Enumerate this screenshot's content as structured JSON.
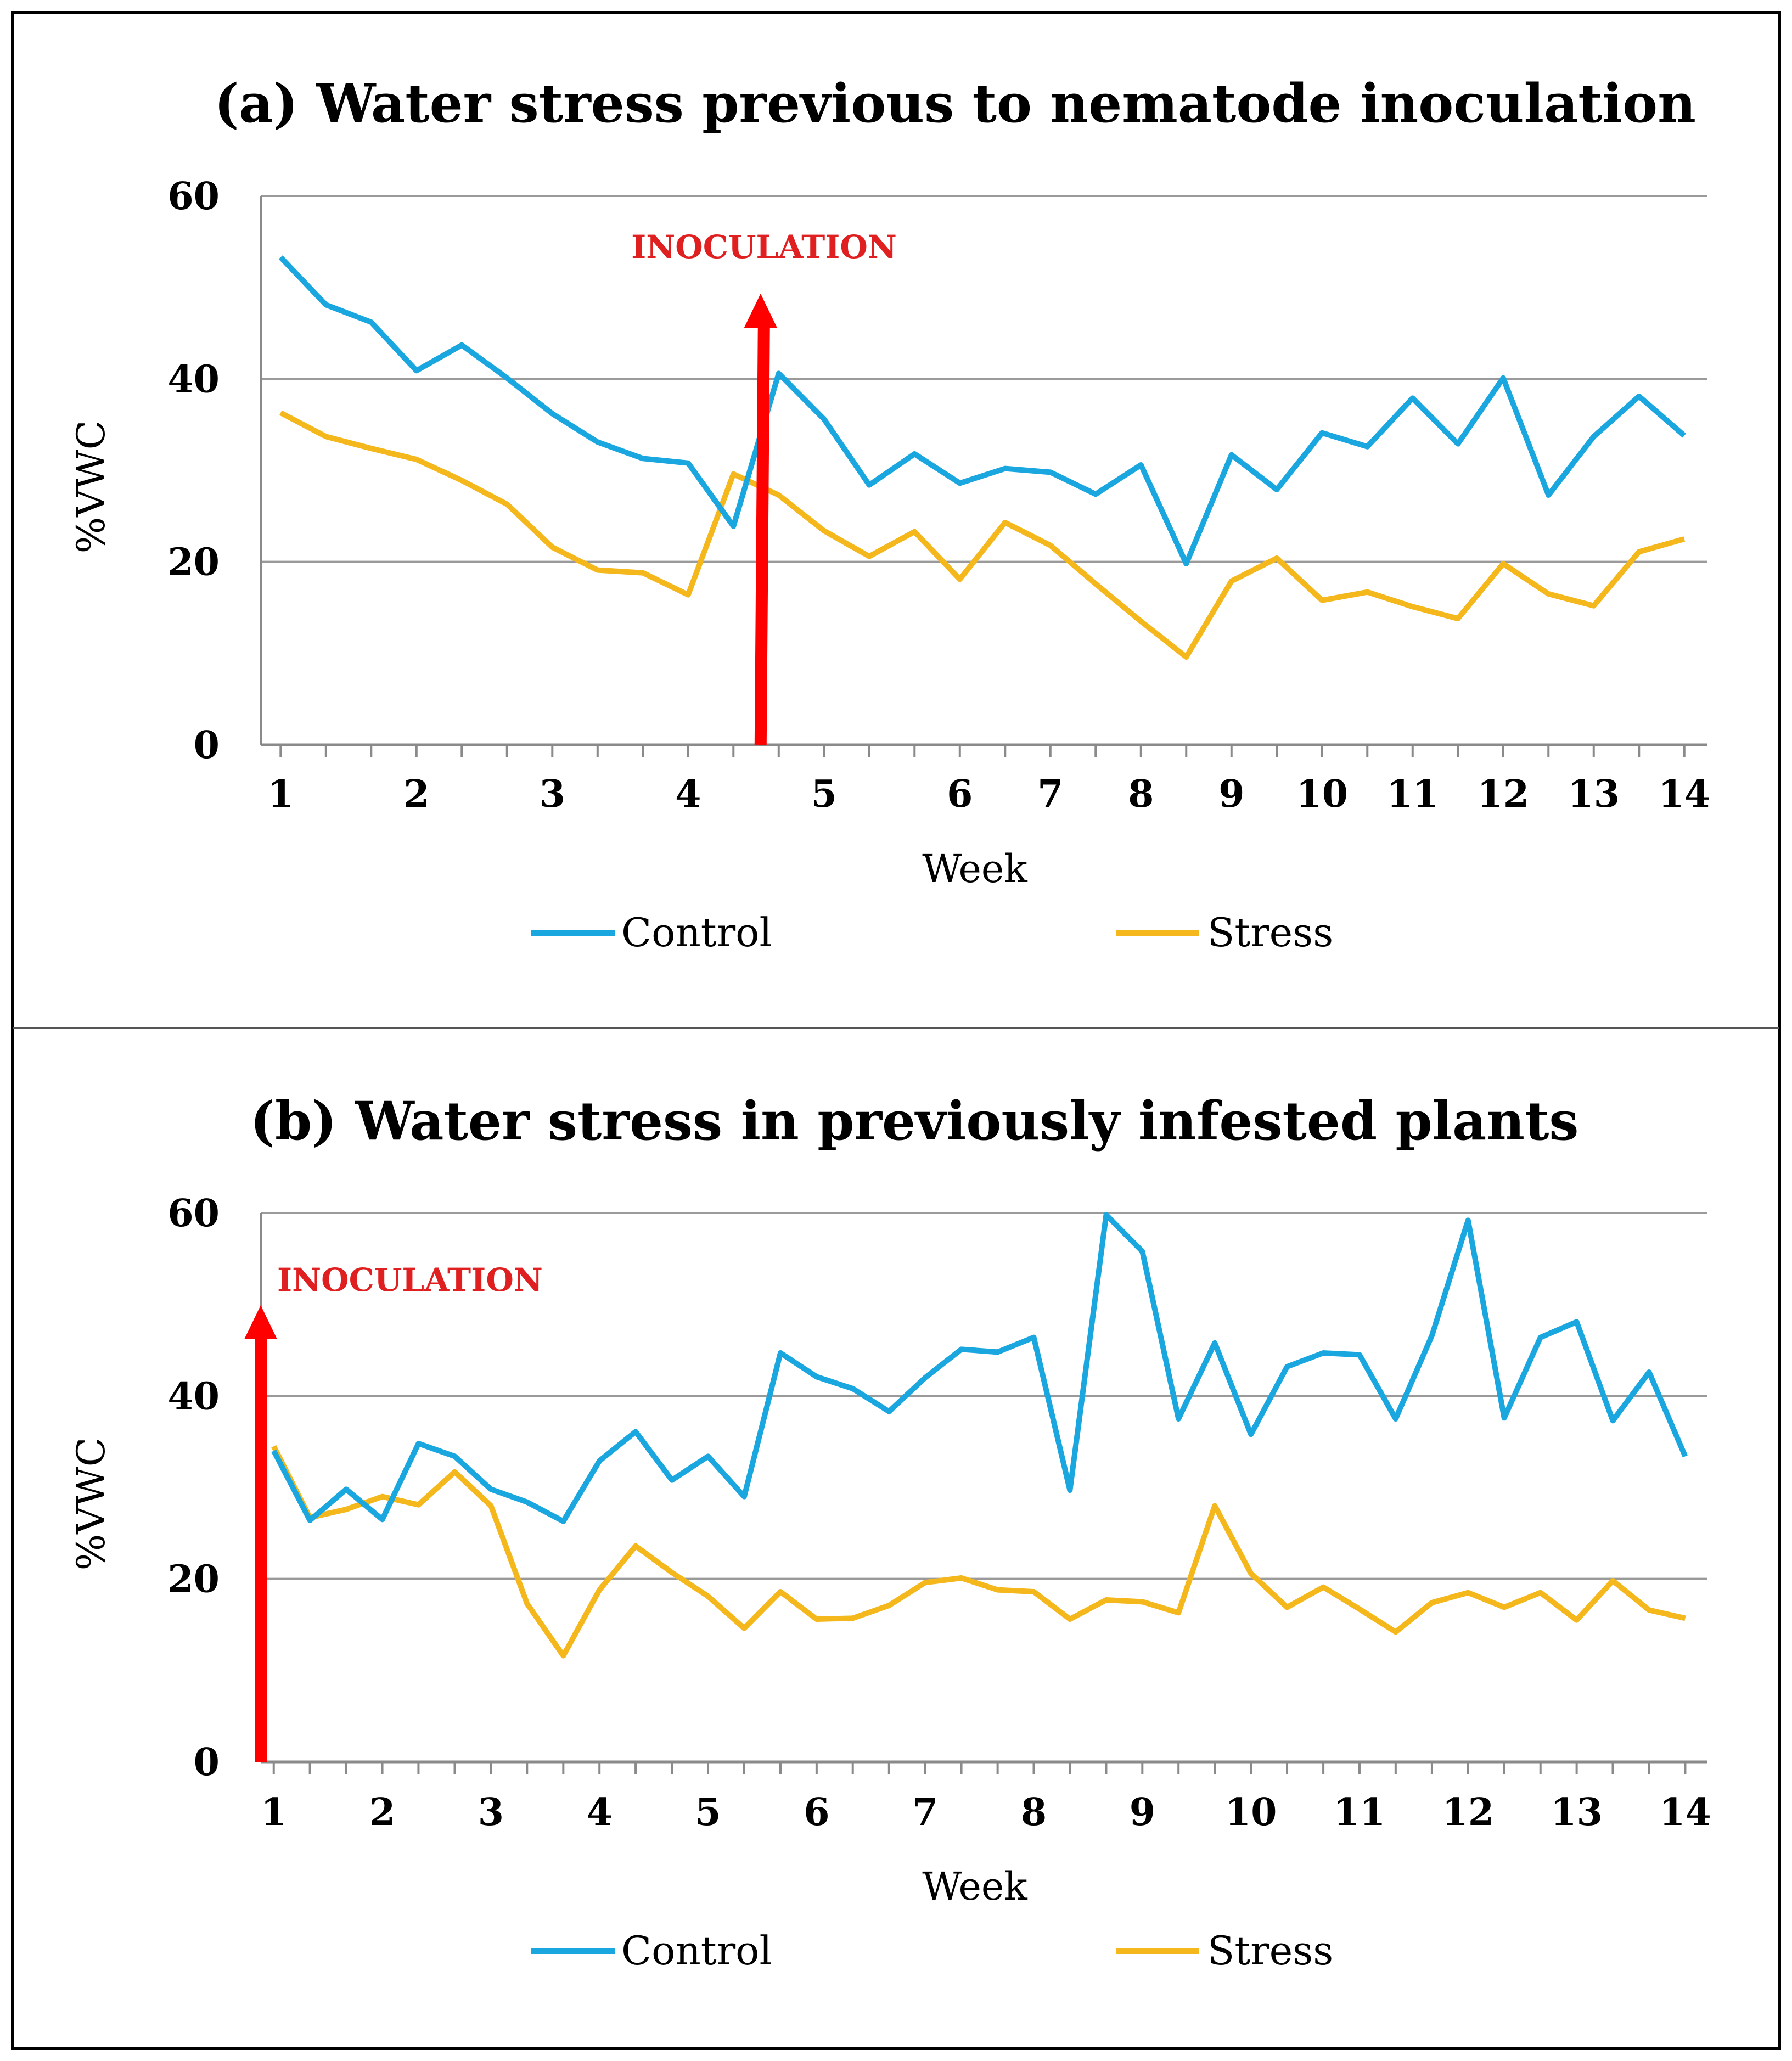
{
  "colors": {
    "control": "#1aa7e0",
    "stress": "#f5b81c",
    "arrow": "#ff0000",
    "annotation": "#e02020",
    "grid": "#9a9a9a",
    "frame": "#000000"
  },
  "chart_data": [
    {
      "type": "line",
      "title": "(a) Water stress previous to nematode inoculation",
      "xlabel": "Week",
      "ylabel": "%VWC",
      "ylim": [
        0,
        60
      ],
      "yticks": [
        "0",
        "20",
        "40",
        "60"
      ],
      "xlim": [
        0.85,
        14.75
      ],
      "week_ticks": [
        {
          "label": "1",
          "x": 1
        },
        {
          "label": "2",
          "x": 2.5
        },
        {
          "label": "3",
          "x": 4
        },
        {
          "label": "4",
          "x": 5.5
        },
        {
          "label": "5",
          "x": 7
        },
        {
          "label": "6",
          "x": 8.5
        },
        {
          "label": "7",
          "x": 9.5
        },
        {
          "label": "8",
          "x": 10.5
        },
        {
          "label": "9",
          "x": 11.5
        },
        {
          "label": "10",
          "x": 12.5
        },
        {
          "label": "11",
          "x": 13.5
        },
        {
          "label": "12",
          "x": 14.5
        },
        {
          "label": "13",
          "x": 15.5
        },
        {
          "label": "14",
          "x": 16.5
        }
      ],
      "x_domain": [
        0.78,
        16.75
      ],
      "sample_x": [
        1,
        1.5,
        2,
        2.5,
        3,
        3.5,
        4,
        4.5,
        5,
        5.5,
        6,
        6.5,
        7,
        7.5,
        8,
        8.5,
        9,
        9.5,
        10,
        10.5,
        11,
        11.5,
        12,
        12.5,
        13,
        13.5,
        14,
        14.5,
        15,
        15.5,
        16,
        16.5
      ],
      "series": [
        {
          "name": "Control",
          "values": [
            53.3,
            48.1,
            46.2,
            40.9,
            43.7,
            40.1,
            36.2,
            33.1,
            31.3,
            30.8,
            23.9,
            40.6,
            35.6,
            28.4,
            31.8,
            28.6,
            30.2,
            29.8,
            27.4,
            30.6,
            19.8,
            31.7,
            27.9,
            34.1,
            32.6,
            37.9,
            32.9,
            40.1,
            27.3,
            33.7,
            38.1,
            33.8
          ]
        },
        {
          "name": "Stress",
          "values": [
            36.3,
            33.7,
            32.4,
            31.2,
            28.9,
            26.3,
            21.6,
            19.1,
            18.8,
            16.4,
            29.6,
            27.3,
            23.4,
            20.6,
            23.3,
            18.1,
            24.3,
            21.8,
            17.6,
            13.5,
            9.6,
            17.9,
            20.4,
            15.8,
            16.7,
            15.1,
            13.8,
            19.8,
            16.5,
            15.2,
            21.1,
            22.5
          ]
        }
      ],
      "annotation": {
        "text": "INOCULATION",
        "x": 6.3
      },
      "legend": [
        "Control",
        "Stress"
      ]
    },
    {
      "type": "line",
      "title": "(b) Water stress in previously infested plants",
      "xlabel": "Week",
      "ylabel": "%VWC",
      "ylim": [
        0,
        60
      ],
      "yticks": [
        "0",
        "20",
        "40",
        "60"
      ],
      "week_ticks": [
        {
          "label": "1",
          "x": 1
        },
        {
          "label": "2",
          "x": 2
        },
        {
          "label": "3",
          "x": 3
        },
        {
          "label": "4",
          "x": 4
        },
        {
          "label": "5",
          "x": 5
        },
        {
          "label": "6",
          "x": 6
        },
        {
          "label": "7",
          "x": 7
        },
        {
          "label": "8",
          "x": 8
        },
        {
          "label": "9",
          "x": 9
        },
        {
          "label": "10",
          "x": 10
        },
        {
          "label": "11",
          "x": 11
        },
        {
          "label": "12",
          "x": 12
        },
        {
          "label": "13",
          "x": 13
        },
        {
          "label": "14",
          "x": 14
        }
      ],
      "x_domain": [
        0.88,
        14.2
      ],
      "sample_x": [
        1,
        1.333,
        1.667,
        2,
        2.333,
        2.667,
        3,
        3.333,
        3.667,
        4,
        4.333,
        4.667,
        5,
        5.333,
        5.667,
        6,
        6.333,
        6.667,
        7,
        7.333,
        7.667,
        8,
        8.333,
        8.667,
        9,
        9.333,
        9.667,
        10,
        10.333,
        10.667,
        11,
        11.333,
        11.667,
        12,
        12.333,
        12.667,
        13,
        13.333,
        13.667,
        14
      ],
      "series": [
        {
          "name": "Control",
          "values": [
            34.0,
            26.4,
            29.8,
            26.5,
            34.8,
            33.4,
            29.8,
            28.4,
            26.3,
            32.9,
            36.1,
            30.8,
            33.4,
            29.0,
            44.7,
            42.1,
            40.8,
            38.3,
            42.0,
            45.1,
            44.8,
            46.4,
            29.7,
            59.8,
            55.8,
            37.5,
            45.8,
            35.8,
            43.2,
            44.7,
            44.5,
            37.5,
            46.6,
            59.2,
            37.6,
            46.4,
            48.1,
            37.3,
            42.6,
            33.4
          ]
        },
        {
          "name": "Stress",
          "values": [
            34.5,
            26.7,
            27.6,
            29.0,
            28.1,
            31.7,
            28.0,
            17.3,
            11.6,
            18.8,
            23.6,
            20.7,
            18.1,
            14.6,
            18.6,
            15.6,
            15.7,
            17.1,
            19.6,
            20.1,
            18.8,
            18.6,
            15.6,
            17.7,
            17.5,
            16.3,
            28.0,
            20.6,
            16.9,
            19.1,
            16.7,
            14.2,
            17.4,
            18.5,
            16.9,
            18.5,
            15.5,
            19.8,
            16.6,
            15.7
          ]
        }
      ],
      "annotation": {
        "text": "INOCULATION",
        "x": 0.88
      },
      "legend": [
        "Control",
        "Stress"
      ]
    }
  ]
}
